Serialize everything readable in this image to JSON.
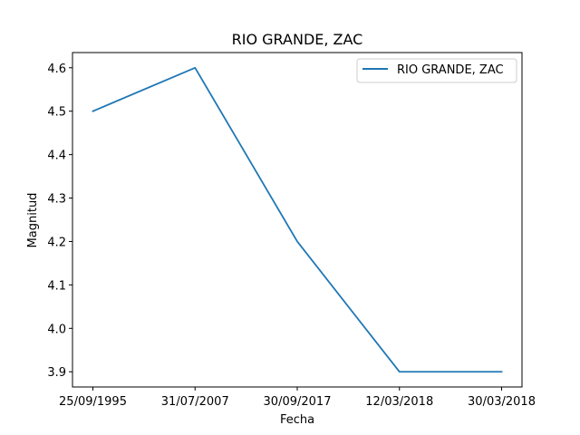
{
  "chart_data": {
    "type": "line",
    "title": "RIO GRANDE, ZAC",
    "xlabel": "Fecha",
    "ylabel": "Magnitud",
    "categories": [
      "25/09/1995",
      "31/07/2007",
      "30/09/2017",
      "12/03/2018",
      "30/03/2018"
    ],
    "series": [
      {
        "name": "RIO GRANDE, ZAC",
        "values": [
          4.5,
          4.6,
          4.2,
          3.9,
          3.9
        ],
        "color": "#1f77b4"
      }
    ],
    "yticks": [
      "3.9",
      "4.0",
      "4.1",
      "4.2",
      "4.3",
      "4.4",
      "4.5",
      "4.6"
    ],
    "ylim": [
      3.865,
      4.635
    ],
    "grid": false,
    "legend_position": "top-right"
  }
}
